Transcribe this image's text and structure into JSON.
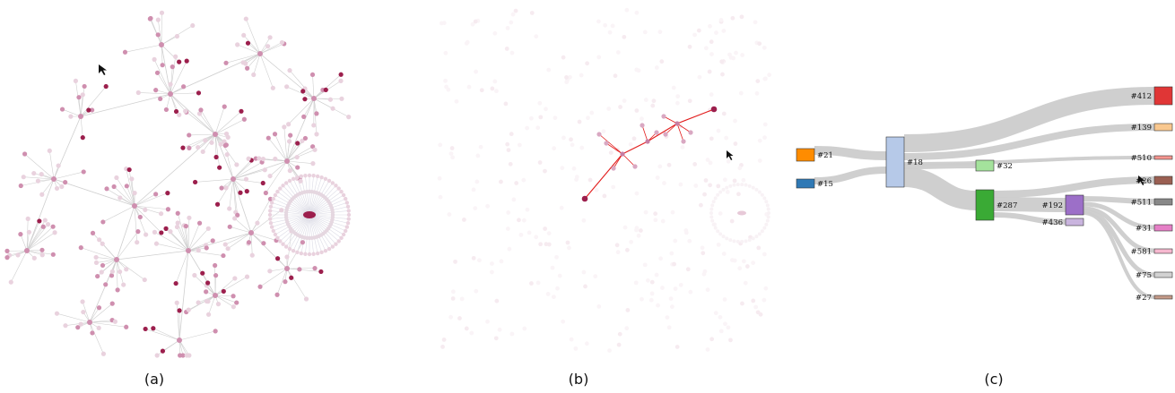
{
  "captions": {
    "a": "(a)",
    "b": "(b)",
    "c": "(c)"
  },
  "colors": {
    "node_light": "#e9d2de",
    "node_mid": "#cf8faf",
    "node_dark": "#9c1f4d",
    "edge": "#cfcfcf",
    "highlight_edge": "#e21c1c",
    "flow": "#cccccc"
  },
  "icons": {
    "cursor": "cursor-arrow-icon"
  },
  "sankey": {
    "nodes": [
      {
        "id": "n21",
        "label": "#21",
        "color": "#ff8c00"
      },
      {
        "id": "n15",
        "label": "#15",
        "color": "#2f79b5"
      },
      {
        "id": "n18",
        "label": "#18",
        "color": "#b6c9e8"
      },
      {
        "id": "n32",
        "label": "#32",
        "color": "#a4e29c"
      },
      {
        "id": "n287",
        "label": "#287",
        "color": "#3aaa35"
      },
      {
        "id": "n192",
        "label": "#192",
        "color": "#9c6fc8"
      },
      {
        "id": "n436",
        "label": "#436",
        "color": "#c9b4de"
      },
      {
        "id": "n412",
        "label": "#412",
        "color": "#e03636"
      },
      {
        "id": "n139",
        "label": "#139",
        "color": "#f9c88f"
      },
      {
        "id": "n510",
        "label": "#510",
        "color": "#f5958f"
      },
      {
        "id": "n26",
        "label": "#26",
        "color": "#9a5f52"
      },
      {
        "id": "n511",
        "label": "#511",
        "color": "#888888"
      },
      {
        "id": "n31",
        "label": "#31",
        "color": "#e57fc6"
      },
      {
        "id": "n581",
        "label": "#581",
        "color": "#f6b8cf"
      },
      {
        "id": "n75",
        "label": "#75",
        "color": "#d2d2d2"
      },
      {
        "id": "n27",
        "label": "#27",
        "color": "#c49a88"
      }
    ]
  }
}
